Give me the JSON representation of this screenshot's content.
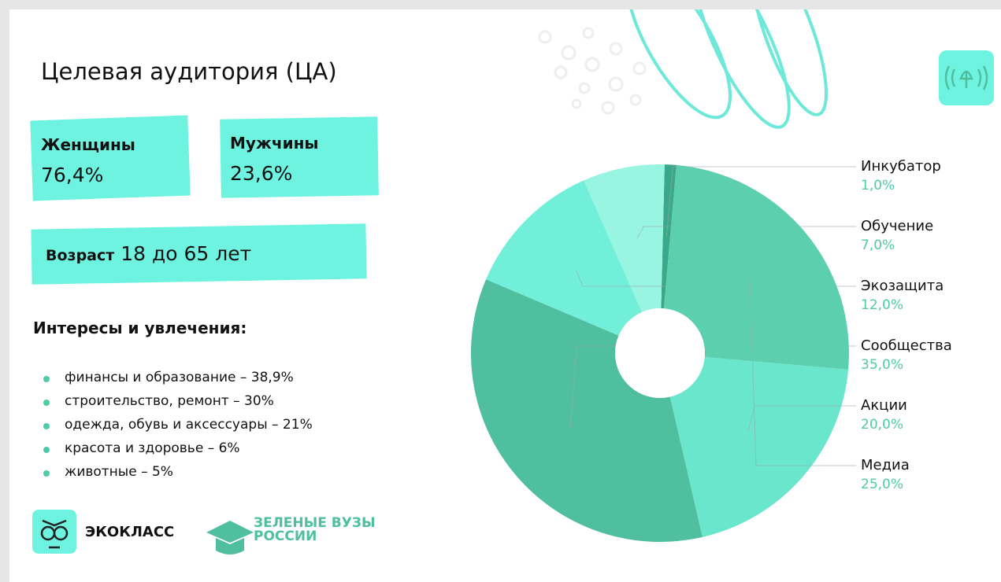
{
  "title": "Целевая аудитория (ЦА)",
  "cards": [
    {
      "label": "Женщины",
      "value": "76,4%"
    },
    {
      "label": "Мужчины",
      "value": "23,6%"
    }
  ],
  "age": {
    "label": "Возраст",
    "value": "18 до 65 лет"
  },
  "interests": {
    "heading": "Интересы и увлечения:",
    "items": [
      "финансы и образование – 38,9%",
      "строительство, ремонт – 30%",
      "одежда, обувь и аксессуары – 21%",
      "красота и здоровье – 6%",
      "животные – 5%"
    ]
  },
  "logos": {
    "ecoclass": "ЭКОКЛАСС",
    "green_universities": [
      "ЗЕЛЕНЫЕ ВУЗЫ",
      "РОССИИ"
    ]
  },
  "chart_data": {
    "type": "pie",
    "donut": true,
    "categories": [
      "Инкубатор",
      "Обучение",
      "Экозащита",
      "Сообщества",
      "Акции",
      "Медиа"
    ],
    "values": [
      1,
      7,
      12,
      35,
      20,
      25
    ],
    "value_labels": [
      "1,0%",
      "7,0%",
      "12,0%",
      "35,0%",
      "20,0%",
      "25,0%"
    ],
    "colors": [
      "#3aa88a",
      "#98f5e1",
      "#72efd9",
      "#4fbf9f",
      "#6ae6cc",
      "#5ccfae"
    ],
    "label_color": "#4fc9a6"
  }
}
